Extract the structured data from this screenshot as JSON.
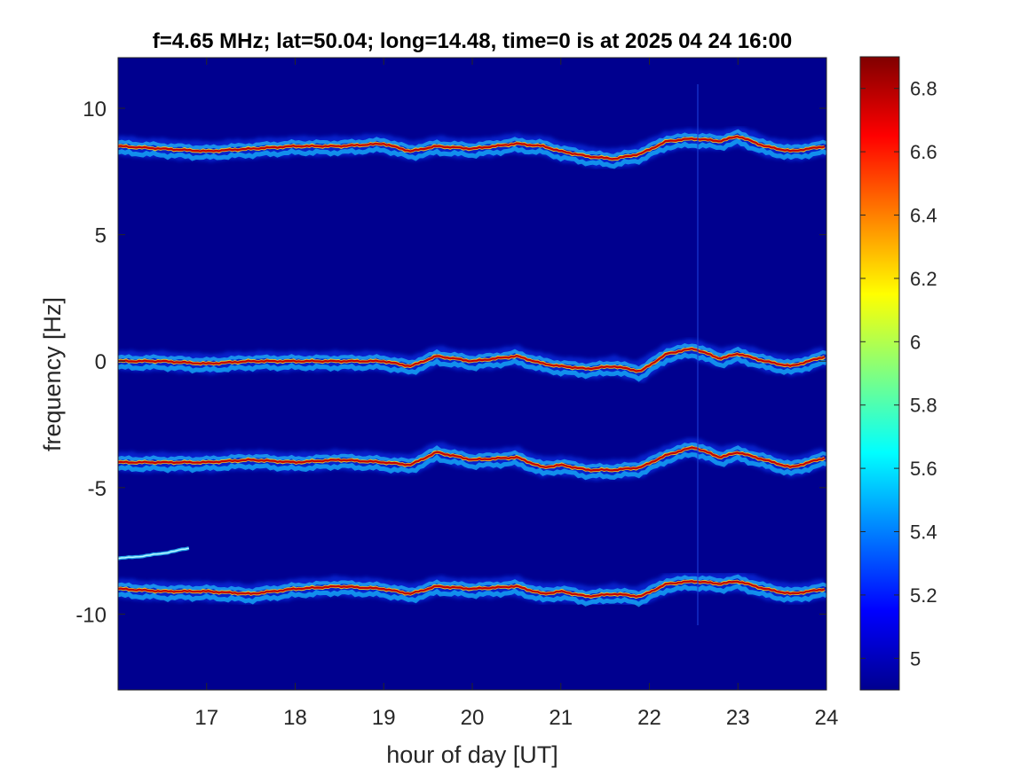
{
  "chart_data": {
    "type": "heatmap",
    "title": "f=4.65 MHz;  lat=50.04; long=14.48, time=0 is at 2025 04 24 16:00",
    "xlabel": "hour of day [UT]",
    "ylabel": "frequency [Hz]",
    "xlim": [
      16,
      24
    ],
    "ylim": [
      -13,
      12
    ],
    "x_ticks": [
      17,
      18,
      19,
      20,
      21,
      22,
      23,
      24
    ],
    "x_tick_labels": [
      "17",
      "18",
      "19",
      "20",
      "21",
      "22",
      "23",
      "24"
    ],
    "y_ticks": [
      10,
      5,
      0,
      -5,
      -10
    ],
    "y_tick_labels": [
      "10",
      "5",
      "0",
      "-5",
      "-10"
    ],
    "colorbar": {
      "clim": [
        4.9,
        6.9
      ],
      "ticks": [
        6.8,
        6.6,
        6.4,
        6.2,
        6.0,
        5.8,
        5.6,
        5.4,
        5.2,
        5.0
      ],
      "tick_labels": [
        "6.8",
        "6.6",
        "6.4",
        "6.2",
        "6",
        "5.8",
        "5.6",
        "5.4",
        "5.2",
        "5"
      ],
      "colormap": "jet",
      "background_color": "#00008f"
    },
    "grid": false,
    "traces": [
      {
        "base_frequency_hz": 8.5,
        "x": [
          16.0,
          16.5,
          17.0,
          17.5,
          18.0,
          18.5,
          19.0,
          19.3,
          19.6,
          20.0,
          20.5,
          20.8,
          21.0,
          21.3,
          21.6,
          21.9,
          22.2,
          22.5,
          22.8,
          23.0,
          23.3,
          23.6,
          24.0
        ],
        "y": [
          8.5,
          8.4,
          8.3,
          8.4,
          8.5,
          8.5,
          8.6,
          8.3,
          8.5,
          8.4,
          8.6,
          8.5,
          8.3,
          8.1,
          8.0,
          8.2,
          8.7,
          8.8,
          8.7,
          8.9,
          8.5,
          8.3,
          8.5
        ]
      },
      {
        "base_frequency_hz": 0.0,
        "x": [
          16.0,
          16.5,
          17.0,
          17.5,
          18.0,
          18.5,
          19.0,
          19.3,
          19.6,
          20.0,
          20.5,
          20.8,
          21.0,
          21.3,
          21.6,
          21.9,
          22.2,
          22.5,
          22.8,
          23.0,
          23.3,
          23.6,
          24.0
        ],
        "y": [
          0.0,
          0.0,
          -0.1,
          0.0,
          0.0,
          0.0,
          0.0,
          -0.2,
          0.2,
          0.0,
          0.2,
          -0.1,
          -0.2,
          -0.3,
          -0.2,
          -0.4,
          0.3,
          0.5,
          0.1,
          0.3,
          0.0,
          -0.2,
          0.2
        ]
      },
      {
        "base_frequency_hz": -4.0,
        "x": [
          16.0,
          16.5,
          17.0,
          17.5,
          18.0,
          18.5,
          19.0,
          19.3,
          19.6,
          20.0,
          20.5,
          20.8,
          21.0,
          21.3,
          21.6,
          21.9,
          22.2,
          22.5,
          22.8,
          23.0,
          23.3,
          23.6,
          24.0
        ],
        "y": [
          -4.0,
          -4.0,
          -4.0,
          -3.9,
          -4.0,
          -3.9,
          -4.0,
          -4.1,
          -3.6,
          -3.9,
          -3.8,
          -4.2,
          -4.1,
          -4.3,
          -4.3,
          -4.2,
          -3.7,
          -3.4,
          -3.8,
          -3.6,
          -3.9,
          -4.2,
          -3.8
        ]
      },
      {
        "base_frequency_hz": -9.0,
        "x": [
          16.0,
          16.5,
          17.0,
          17.5,
          18.0,
          18.5,
          19.0,
          19.3,
          19.6,
          20.0,
          20.5,
          20.8,
          21.0,
          21.3,
          21.6,
          21.9,
          22.2,
          22.5,
          22.8,
          23.0,
          23.3,
          23.6,
          24.0
        ],
        "y": [
          -9.0,
          -9.1,
          -9.1,
          -9.2,
          -9.0,
          -8.9,
          -9.0,
          -9.2,
          -8.9,
          -9.0,
          -8.9,
          -9.2,
          -9.1,
          -9.3,
          -9.2,
          -9.3,
          -8.8,
          -8.7,
          -8.8,
          -8.7,
          -9.0,
          -9.2,
          -9.0
        ]
      }
    ],
    "short_trace": {
      "x": [
        16.0,
        16.3,
        16.5,
        16.8
      ],
      "y": [
        -7.8,
        -7.7,
        -7.6,
        -7.4
      ]
    }
  }
}
